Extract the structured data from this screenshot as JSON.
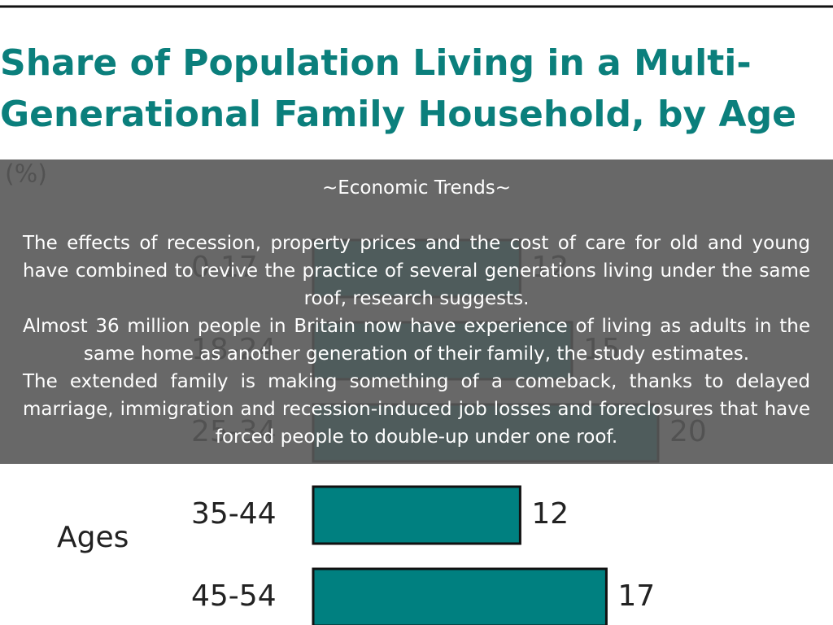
{
  "chart_data": {
    "type": "bar",
    "orientation": "horizontal",
    "title": [
      "Share of Population Living in a Multi-",
      "Generational Family Household, by Age"
    ],
    "subtitle": "(%)",
    "y_label": "Ages",
    "categories": [
      "0-17",
      "18-24",
      "25-34",
      "35-44",
      "45-54"
    ],
    "values": [
      12,
      15,
      20,
      12,
      17
    ],
    "color": "#008080"
  },
  "overlay": {
    "heading": "~Economic Trends~",
    "paragraphs": [
      "The effects of recession, property prices and the cost of care for old and young have combined to revive the practice of several generations living under the same roof, research suggests.",
      "Almost 36 million people in Britain now have experience of living as adults in the same home as another generation of their family, the study estimates.",
      "The extended family is making something of a comeback, thanks to delayed marriage, immigration and recession-induced job losses and foreclosures that have forced people to double-up under one roof."
    ]
  }
}
